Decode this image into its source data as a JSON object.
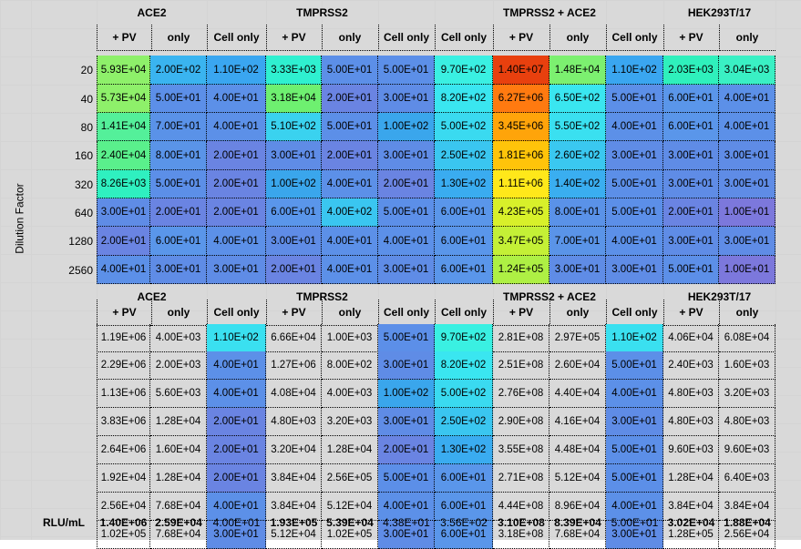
{
  "y_axis_label": "Dilution Factor",
  "groups": [
    "ACE2",
    "TMPRSS2",
    "TMPRSS2 + ACE2",
    "HEK293T/17"
  ],
  "columns": [
    "+ PV",
    "only",
    "Cell only",
    "+ PV",
    "only",
    "Cell only",
    "Cell only",
    "+ PV",
    "only",
    "Cell only",
    "+ PV",
    "only"
  ],
  "dilutions": [
    "20",
    "40",
    "80",
    "160",
    "320",
    "640",
    "1280",
    "2560"
  ],
  "heatmap": [
    [
      "5.93E+04",
      "2.00E+02",
      "1.10E+02",
      "3.33E+03",
      "5.00E+01",
      "5.00E+01",
      "9.70E+02",
      "1.40E+07",
      "1.48E+04",
      "1.10E+02",
      "2.03E+03",
      "3.04E+03"
    ],
    [
      "5.73E+04",
      "5.00E+01",
      "4.00E+01",
      "3.18E+04",
      "2.00E+01",
      "3.00E+01",
      "8.20E+02",
      "6.27E+06",
      "6.50E+02",
      "5.00E+01",
      "6.00E+01",
      "4.00E+01"
    ],
    [
      "1.41E+04",
      "7.00E+01",
      "4.00E+01",
      "5.10E+02",
      "5.00E+01",
      "1.00E+02",
      "5.00E+02",
      "3.45E+06",
      "5.50E+02",
      "4.00E+01",
      "6.00E+01",
      "4.00E+01"
    ],
    [
      "2.40E+04",
      "8.00E+01",
      "2.00E+01",
      "3.00E+01",
      "2.00E+01",
      "3.00E+01",
      "2.50E+02",
      "1.81E+06",
      "2.60E+02",
      "3.00E+01",
      "3.00E+01",
      "3.00E+01"
    ],
    [
      "8.26E+03",
      "5.00E+01",
      "2.00E+01",
      "1.00E+02",
      "4.00E+01",
      "2.00E+01",
      "1.30E+02",
      "1.11E+06",
      "1.40E+02",
      "5.00E+01",
      "3.00E+01",
      "3.00E+01"
    ],
    [
      "3.00E+01",
      "2.00E+01",
      "2.00E+01",
      "6.00E+01",
      "4.00E+02",
      "5.00E+01",
      "6.00E+01",
      "4.23E+05",
      "8.00E+01",
      "5.00E+01",
      "2.00E+01",
      "1.00E+01"
    ],
    [
      "2.00E+01",
      "6.00E+01",
      "4.00E+01",
      "3.00E+01",
      "4.00E+01",
      "4.00E+01",
      "6.00E+01",
      "3.47E+05",
      "7.00E+01",
      "4.00E+01",
      "3.00E+01",
      "3.00E+01"
    ],
    [
      "4.00E+01",
      "3.00E+01",
      "3.00E+01",
      "2.00E+01",
      "4.00E+01",
      "3.00E+01",
      "6.00E+01",
      "1.24E+05",
      "3.00E+01",
      "3.00E+01",
      "5.00E+01",
      "1.00E+01"
    ]
  ],
  "heatmap_colors": [
    [
      "#8ef06a",
      "#3ab4f0",
      "#3aa6f0",
      "#2ff0d0",
      "#5c8fe8",
      "#5c8fe8",
      "#3af0e2",
      "#e8400e",
      "#7cf070",
      "#3aa6f0",
      "#2ff0bc",
      "#3af0c4"
    ],
    [
      "#8ef06a",
      "#5c8fe8",
      "#5c90e8",
      "#6ef070",
      "#6a84e2",
      "#5f8ce6",
      "#3ae6f0",
      "#ff7a10",
      "#3ae6f0",
      "#5c8fe8",
      "#5a96ea",
      "#5c90e8"
    ],
    [
      "#54f09a",
      "#5a92e8",
      "#5c90e8",
      "#3ad2ef",
      "#5c8fe8",
      "#3aa6ec",
      "#3adaf0",
      "#ffa40a",
      "#3ae0f0",
      "#5c90e8",
      "#5a96ea",
      "#5c90e8"
    ],
    [
      "#5af08c",
      "#5a94e8",
      "#6a84e2",
      "#5f8ce6",
      "#6a84e2",
      "#5f8ce6",
      "#3ac6f0",
      "#ffc40a",
      "#3ac8f0",
      "#5f8ce6",
      "#5f8ce6",
      "#5f8ce6"
    ],
    [
      "#2ff0c0",
      "#5c8fe8",
      "#6a84e2",
      "#3aa6ec",
      "#5c90e8",
      "#6a84e2",
      "#3aacf0",
      "#ffe81a",
      "#3aaef0",
      "#5c8fe8",
      "#5f8ce6",
      "#5f8ce6"
    ],
    [
      "#5f8ce6",
      "#6a84e2",
      "#6a84e2",
      "#5a96ea",
      "#3ac6f0",
      "#5c8fe8",
      "#5a96ea",
      "#d8f02a",
      "#5a92e8",
      "#5c8fe8",
      "#6a84e2",
      "#7c78dc"
    ],
    [
      "#6a84e2",
      "#5a96ea",
      "#5c90e8",
      "#5f8ce6",
      "#5c90e8",
      "#5c90e8",
      "#5a96ea",
      "#c4f036",
      "#5a94e8",
      "#5c90e8",
      "#5f8ce6",
      "#5f8ce6"
    ],
    [
      "#5c90e8",
      "#5f8ce6",
      "#5f8ce6",
      "#6a84e2",
      "#5c90e8",
      "#5f8ce6",
      "#5a96ea",
      "#aef044",
      "#5f8ce6",
      "#5f8ce6",
      "#5c8fe8",
      "#7c78dc"
    ]
  ],
  "table": [
    [
      "1.19E+06",
      "4.00E+03",
      "1.10E+02",
      "6.66E+04",
      "1.00E+03",
      "5.00E+01",
      "9.70E+02",
      "2.81E+08",
      "2.97E+05",
      "1.10E+02",
      "4.06E+04",
      "6.08E+04"
    ],
    [
      "2.29E+06",
      "2.00E+03",
      "4.00E+01",
      "1.27E+06",
      "8.00E+02",
      "3.00E+01",
      "8.20E+02",
      "2.51E+08",
      "2.60E+04",
      "5.00E+01",
      "2.40E+03",
      "1.60E+03"
    ],
    [
      "1.13E+06",
      "5.60E+03",
      "4.00E+01",
      "4.08E+04",
      "4.00E+03",
      "1.00E+02",
      "5.00E+02",
      "2.76E+08",
      "4.40E+04",
      "4.00E+01",
      "4.80E+03",
      "3.20E+03"
    ],
    [
      "3.83E+06",
      "1.28E+04",
      "2.00E+01",
      "4.80E+03",
      "3.20E+03",
      "3.00E+01",
      "2.50E+02",
      "2.90E+08",
      "4.16E+04",
      "3.00E+01",
      "4.80E+03",
      "4.80E+03"
    ],
    [
      "2.64E+06",
      "1.60E+04",
      "2.00E+01",
      "3.20E+04",
      "1.28E+04",
      "2.00E+01",
      "1.30E+02",
      "3.55E+08",
      "4.48E+04",
      "5.00E+01",
      "9.60E+03",
      "9.60E+03"
    ],
    [
      "1.92E+04",
      "1.28E+04",
      "2.00E+01",
      "3.84E+04",
      "2.56E+05",
      "5.00E+01",
      "6.00E+01",
      "2.71E+08",
      "5.12E+04",
      "5.00E+01",
      "1.28E+04",
      "6.40E+03"
    ],
    [
      "2.56E+04",
      "7.68E+04",
      "4.00E+01",
      "3.84E+04",
      "5.12E+04",
      "4.00E+01",
      "6.00E+01",
      "4.44E+08",
      "8.96E+04",
      "4.00E+01",
      "3.84E+04",
      "3.84E+04"
    ],
    [
      "1.02E+05",
      "7.68E+04",
      "3.00E+01",
      "5.12E+04",
      "1.02E+05",
      "3.00E+01",
      "6.00E+01",
      "3.18E+08",
      "7.68E+04",
      "3.00E+01",
      "1.28E+05",
      "2.56E+04"
    ]
  ],
  "table_colored_cols": {
    "2": [
      "#3ae0f0",
      "#5c90e8",
      "#5c90e8",
      "#6a84e2",
      "#6a84e2",
      "#6a84e2",
      "#5c90e8",
      "#5f8ce6"
    ],
    "5": [
      "#5c8fe8",
      "#5f8ce6",
      "#3aa6ec",
      "#5f8ce6",
      "#6a84e2",
      "#5c8fe8",
      "#5c90e8",
      "#5f8ce6"
    ],
    "6": [
      "#3af0e2",
      "#3ae6f0",
      "#3adaf0",
      "#3ac6f0",
      "#3aacf0",
      "#5a96ea",
      "#5a96ea",
      "#5a96ea"
    ],
    "9": [
      "#3ae0f0",
      "#5c8fe8",
      "#5c90e8",
      "#5f8ce6",
      "#5c8fe8",
      "#5c8fe8",
      "#5c90e8",
      "#5f8ce6"
    ]
  },
  "rlu_label": "RLU/mL",
  "rlu_values": [
    "1.40E+06",
    "2.59E+04",
    "4.00E+01",
    "1.93E+05",
    "5.39E+04",
    "4.38E+01",
    "3.56E+02",
    "3.10E+08",
    "8.39E+04",
    "5.00E+01",
    "3.02E+04",
    "1.88E+04"
  ],
  "rlu_bold": [
    true,
    true,
    false,
    true,
    true,
    false,
    false,
    true,
    true,
    false,
    true,
    true
  ]
}
